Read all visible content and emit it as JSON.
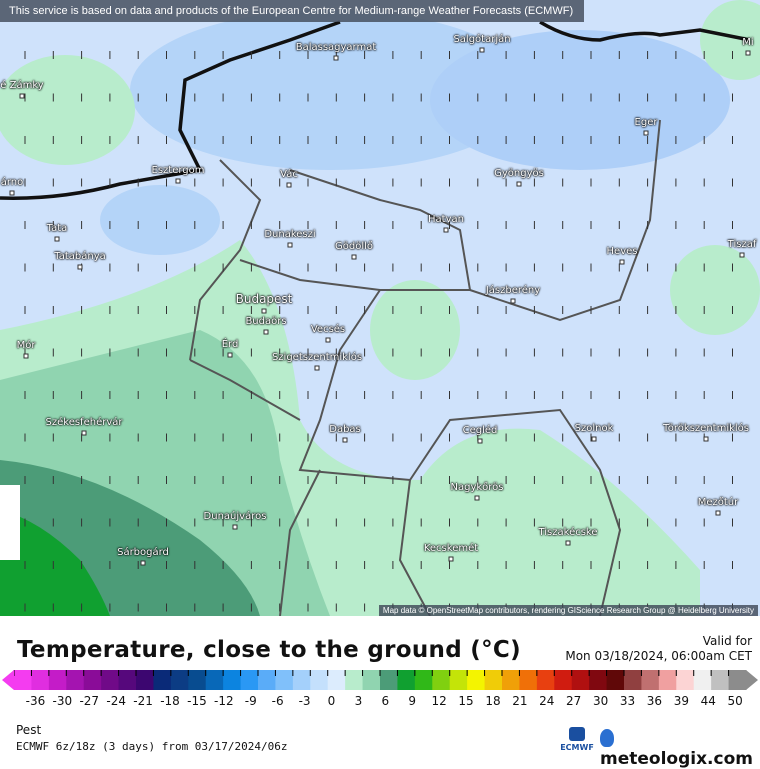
{
  "banner": "This service is based on data and products of the European Centre for Medium-range Weather Forecasts (ECMWF)",
  "map_credit": "Map data © OpenStreetMap contributors, rendering GIScience Research Group @ Heidelberg University",
  "cities": [
    {
      "name": "Balassagyarmat"
    },
    {
      "name": "Salgótarján"
    },
    {
      "name": "Mi"
    },
    {
      "name": "é Zámky"
    },
    {
      "name": "Eger"
    },
    {
      "name": "Esztergom"
    },
    {
      "name": "Vác"
    },
    {
      "name": "Gyöngyös"
    },
    {
      "name": "árno"
    },
    {
      "name": "Tata"
    },
    {
      "name": "Hatvan"
    },
    {
      "name": "Dunakeszi"
    },
    {
      "name": "Gödöllő"
    },
    {
      "name": "Tiszaf"
    },
    {
      "name": "Tatabánya"
    },
    {
      "name": "Heves"
    },
    {
      "name": "Jászberény"
    },
    {
      "name": "Budapest"
    },
    {
      "name": "Budaörs"
    },
    {
      "name": "Vecsés"
    },
    {
      "name": "Mór"
    },
    {
      "name": "Érd"
    },
    {
      "name": "Szigetszentmiklós"
    },
    {
      "name": "Székesfehérvár"
    },
    {
      "name": "Dabas"
    },
    {
      "name": "Cegléd"
    },
    {
      "name": "Szolnok"
    },
    {
      "name": "Törökszentmiklós"
    },
    {
      "name": "Nagykőrös"
    },
    {
      "name": "Mezőtúr"
    },
    {
      "name": "Dunaújváros"
    },
    {
      "name": "Tiszakécske"
    },
    {
      "name": "Kecskemét"
    },
    {
      "name": "Sárbogárd"
    }
  ],
  "title": "Temperature, close to the ground (°C)",
  "valid_label": "Valid for",
  "valid_time": "Mon 03/18/2024, 06:00am CET",
  "legend_ticks": [
    "-36",
    "-30",
    "-27",
    "-24",
    "-21",
    "-18",
    "-15",
    "-12",
    "-9",
    "-6",
    "-3",
    "0",
    "3",
    "6",
    "9",
    "12",
    "15",
    "18",
    "21",
    "24",
    "27",
    "30",
    "33",
    "36",
    "39",
    "44",
    "50"
  ],
  "legend_colors": [
    "#f43cf0",
    "#e02ee0",
    "#c41cc8",
    "#a414b0",
    "#8a0c98",
    "#700a88",
    "#56087c",
    "#3c0670",
    "#0a2a78",
    "#0c3c84",
    "#084c90",
    "#0868b8",
    "#0c84e0",
    "#2a98f4",
    "#5aacf8",
    "#80c0fa",
    "#a4d0fb",
    "#c4e0fc",
    "#dcecfd",
    "#b8eccc",
    "#90d4b0",
    "#4c9c78",
    "#10a030",
    "#30b818",
    "#80d010",
    "#c4e408",
    "#f4f400",
    "#f0cc08",
    "#f0a008",
    "#f07008",
    "#e84010",
    "#d01c10",
    "#b01010",
    "#800810",
    "#600808",
    "#904040",
    "#c07070",
    "#f0a0a0",
    "#fcd4d4",
    "#f0f0f0",
    "#c0c0c0",
    "#8c8c8c"
  ],
  "location": "Pest",
  "model_run": "ECMWF 6z/18z (3 days) from 03/17/2024/06z",
  "ecmwf_logo": "ECMWF",
  "brand": "meteologix.com"
}
